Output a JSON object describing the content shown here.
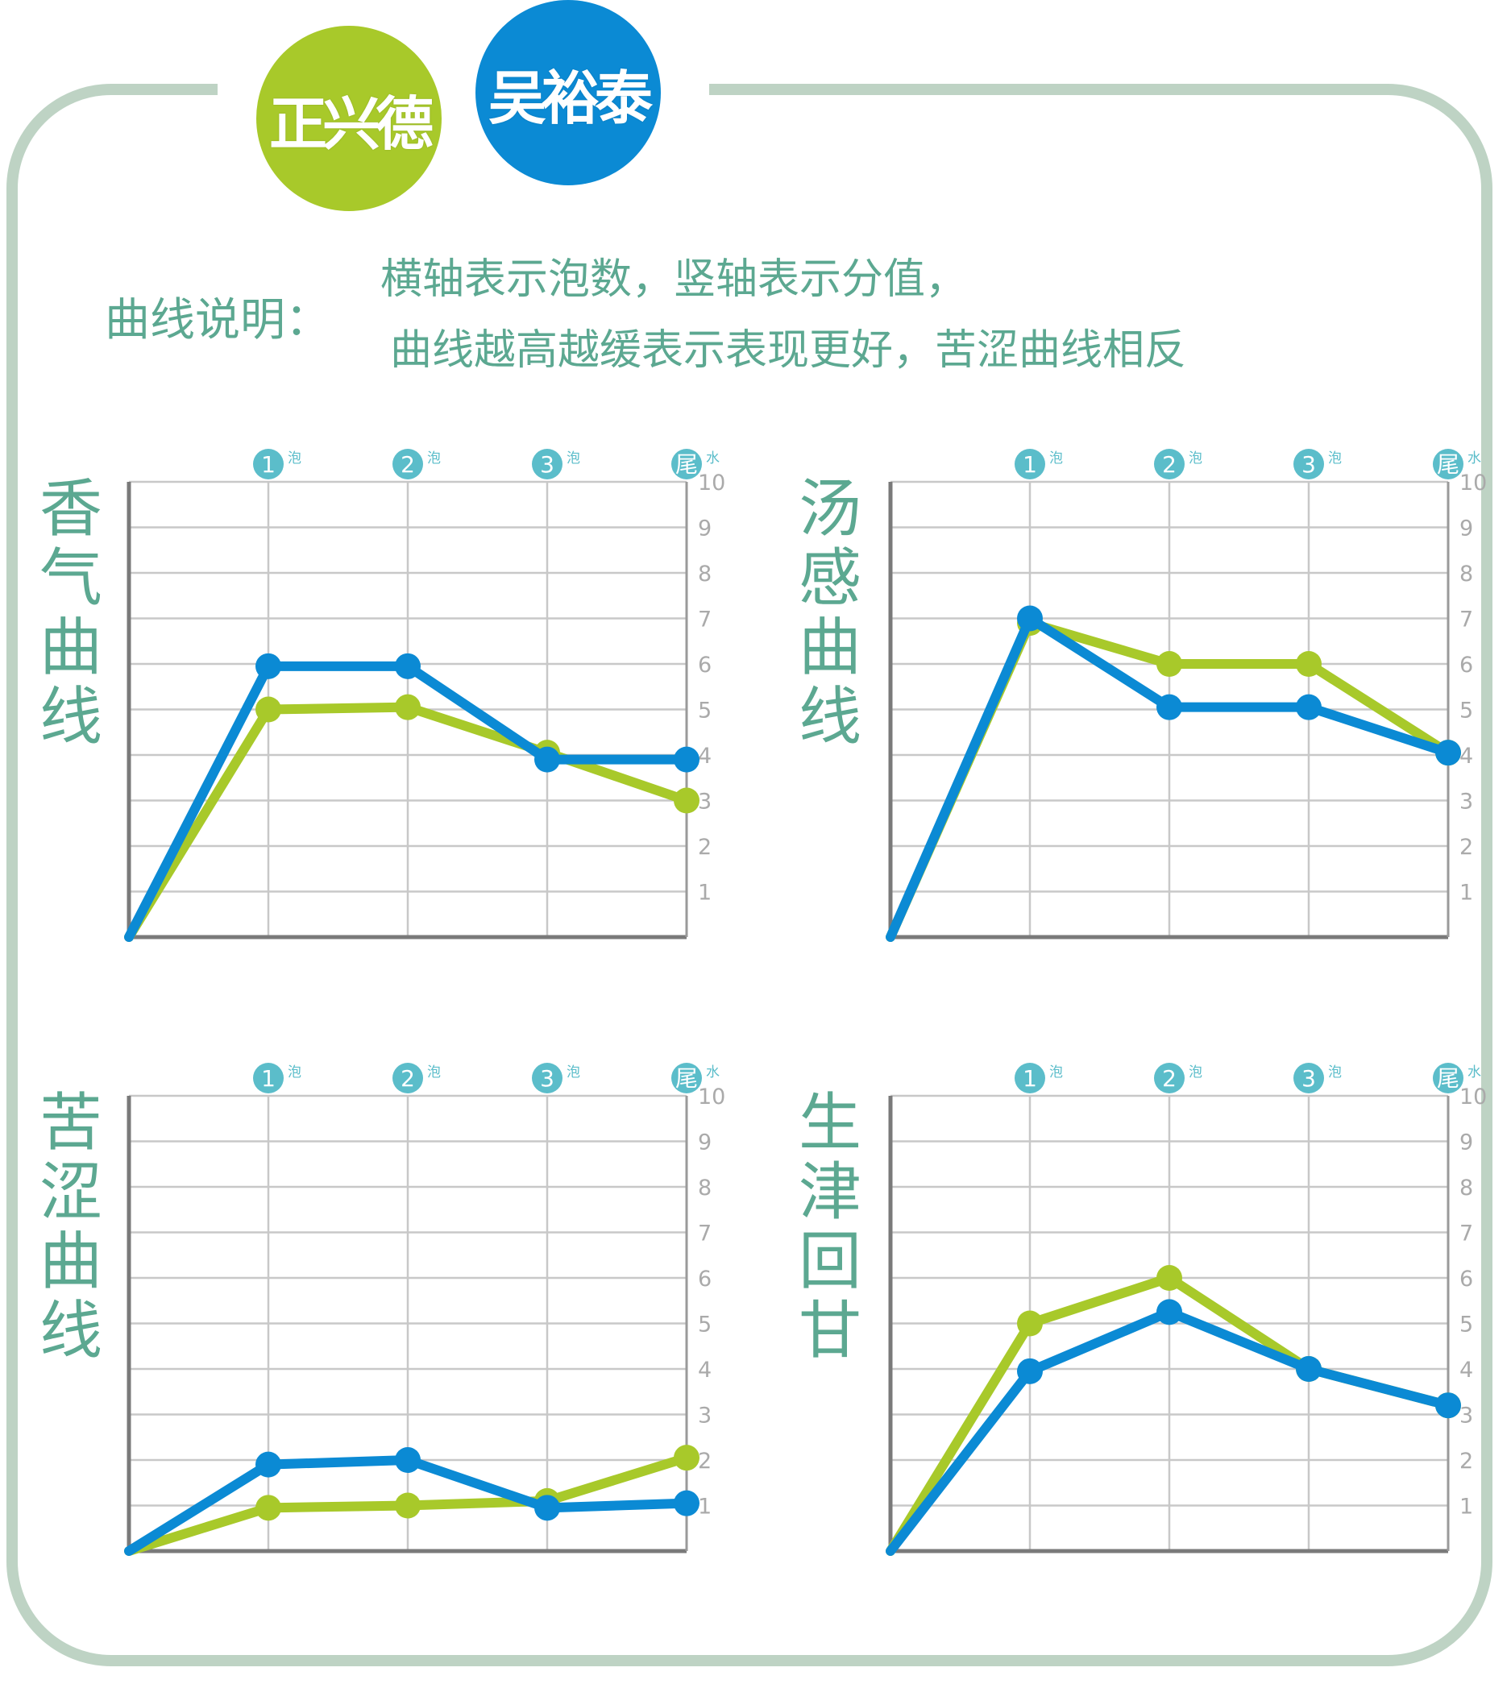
{
  "brands": [
    {
      "name": "正兴德",
      "color": "#a8c92a"
    },
    {
      "name": "吴裕泰",
      "color": "#0b8ad4"
    }
  ],
  "legend": {
    "heading": "曲线说明：",
    "lines": [
      "横轴表示泡数，竖轴表示分值，",
      "曲线越高越缓表示表现更好，苦涩曲线相反"
    ]
  },
  "colors": {
    "green": "#a8c92a",
    "blue": "#0b8ad4",
    "accent": "#5ca891",
    "marker": "#5bbdca",
    "grid": "#c8c8c8"
  },
  "chart_data": [
    {
      "type": "line",
      "title": "香气曲线",
      "x": [
        "",
        "1",
        "2",
        "3",
        "尾"
      ],
      "x_suffix": [
        "",
        "泡",
        "泡",
        "泡",
        "水"
      ],
      "ylim": [
        0,
        10
      ],
      "yticks": [
        1,
        2,
        3,
        4,
        5,
        6,
        7,
        8,
        9,
        10
      ],
      "grid": true,
      "series": [
        {
          "name": "正兴德",
          "values": [
            0,
            5,
            5.05,
            4.05,
            3
          ]
        },
        {
          "name": "吴裕泰",
          "values": [
            0,
            5.95,
            5.95,
            3.9,
            3.9
          ]
        }
      ]
    },
    {
      "type": "line",
      "title": "汤感曲线",
      "x": [
        "",
        "1",
        "2",
        "3",
        "尾"
      ],
      "x_suffix": [
        "",
        "泡",
        "泡",
        "泡",
        "水"
      ],
      "ylim": [
        0,
        10
      ],
      "yticks": [
        1,
        2,
        3,
        4,
        5,
        6,
        7,
        8,
        9,
        10
      ],
      "grid": true,
      "series": [
        {
          "name": "正兴德",
          "values": [
            0,
            6.9,
            6,
            6,
            4.05
          ]
        },
        {
          "name": "吴裕泰",
          "values": [
            0,
            7,
            5.05,
            5.05,
            4.05
          ]
        }
      ]
    },
    {
      "type": "line",
      "title": "苦涩曲线",
      "x": [
        "",
        "1",
        "2",
        "3",
        "尾"
      ],
      "x_suffix": [
        "",
        "泡",
        "泡",
        "泡",
        "水"
      ],
      "ylim": [
        0,
        10
      ],
      "yticks": [
        1,
        2,
        3,
        4,
        5,
        6,
        7,
        8,
        9,
        10
      ],
      "grid": true,
      "series": [
        {
          "name": "正兴德",
          "values": [
            0,
            0.95,
            1,
            1.1,
            2.05
          ]
        },
        {
          "name": "吴裕泰",
          "values": [
            0,
            1.9,
            2,
            0.95,
            1.05
          ]
        }
      ]
    },
    {
      "type": "line",
      "title": "生津回甘",
      "x": [
        "",
        "1",
        "2",
        "3",
        "尾"
      ],
      "x_suffix": [
        "",
        "泡",
        "泡",
        "泡",
        "水"
      ],
      "ylim": [
        0,
        10
      ],
      "yticks": [
        1,
        2,
        3,
        4,
        5,
        6,
        7,
        8,
        9,
        10
      ],
      "grid": true,
      "series": [
        {
          "name": "正兴德",
          "values": [
            0,
            5,
            6,
            4,
            3.2
          ]
        },
        {
          "name": "吴裕泰",
          "values": [
            0,
            3.95,
            5.25,
            4,
            3.2
          ]
        }
      ]
    }
  ]
}
